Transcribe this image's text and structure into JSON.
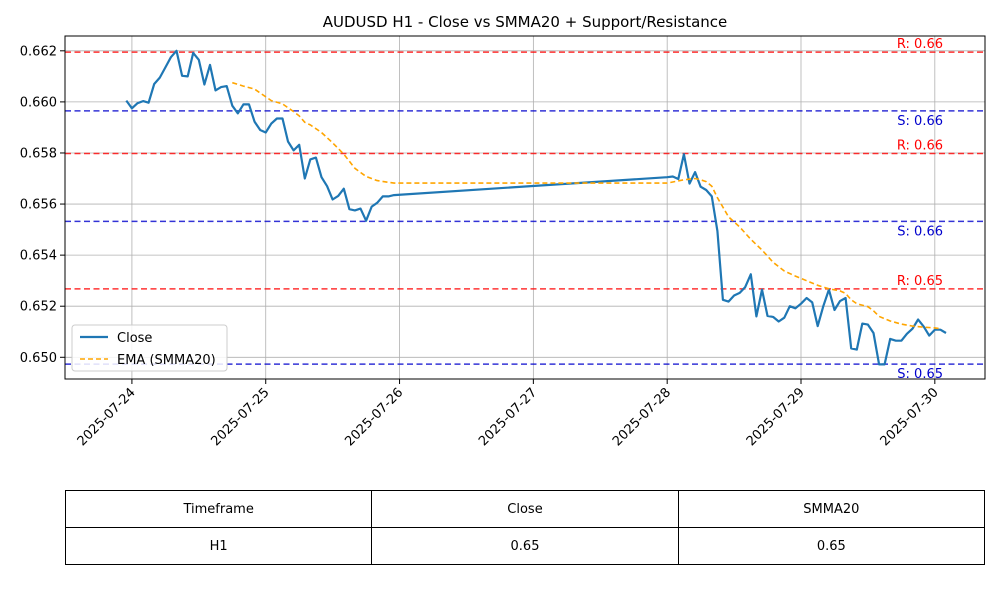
{
  "chart_data": {
    "type": "line",
    "title": "AUDUSD H1 - Close vs SMMA20 + Support/Resistance",
    "xlabel": "",
    "ylabel": "",
    "x_ticks": [
      "2025-07-24",
      "2025-07-25",
      "2025-07-26",
      "2025-07-27",
      "2025-07-28",
      "2025-07-29",
      "2025-07-30"
    ],
    "y_ticks": [
      "0.650",
      "0.652",
      "0.654",
      "0.656",
      "0.658",
      "0.660",
      "0.662"
    ],
    "xlim": [
      "2025-07-23 12:00",
      "2025-07-30 09:00"
    ],
    "ylim": [
      0.64915,
      0.66258
    ],
    "grid": true,
    "legend": {
      "position": "lower-left",
      "entries": [
        {
          "label": "Close",
          "color": "#1f77b4",
          "style": "solid"
        },
        {
          "label": "EMA (SMMA20)",
          "color": "#ffa500",
          "style": "dashed"
        }
      ]
    },
    "series": [
      {
        "name": "Close",
        "color": "#1f77b4",
        "points": [
          [
            "2025-07-23 23:00",
            0.66005
          ],
          [
            "2025-07-24 00:00",
            0.65975
          ],
          [
            "2025-07-24 01:00",
            0.65995
          ],
          [
            "2025-07-24 02:00",
            0.66003
          ],
          [
            "2025-07-24 03:00",
            0.65997
          ],
          [
            "2025-07-24 04:00",
            0.6607
          ],
          [
            "2025-07-24 05:00",
            0.66095
          ],
          [
            "2025-07-24 06:00",
            0.66135
          ],
          [
            "2025-07-24 07:00",
            0.66175
          ],
          [
            "2025-07-24 08:00",
            0.662
          ],
          [
            "2025-07-24 09:00",
            0.66102
          ],
          [
            "2025-07-24 10:00",
            0.661
          ],
          [
            "2025-07-24 11:00",
            0.66192
          ],
          [
            "2025-07-24 12:00",
            0.66165
          ],
          [
            "2025-07-24 13:00",
            0.66068
          ],
          [
            "2025-07-24 14:00",
            0.66145
          ],
          [
            "2025-07-24 15:00",
            0.66045
          ],
          [
            "2025-07-24 16:00",
            0.66058
          ],
          [
            "2025-07-24 17:00",
            0.66062
          ],
          [
            "2025-07-24 18:00",
            0.65985
          ],
          [
            "2025-07-24 19:00",
            0.65955
          ],
          [
            "2025-07-24 20:00",
            0.6599
          ],
          [
            "2025-07-24 21:00",
            0.6599
          ],
          [
            "2025-07-24 22:00",
            0.65922
          ],
          [
            "2025-07-24 23:00",
            0.6589
          ],
          [
            "2025-07-25 00:00",
            0.6588
          ],
          [
            "2025-07-25 01:00",
            0.65915
          ],
          [
            "2025-07-25 02:00",
            0.65935
          ],
          [
            "2025-07-25 03:00",
            0.65935
          ],
          [
            "2025-07-25 04:00",
            0.65845
          ],
          [
            "2025-07-25 05:00",
            0.6581
          ],
          [
            "2025-07-25 06:00",
            0.65832
          ],
          [
            "2025-07-25 07:00",
            0.657
          ],
          [
            "2025-07-25 08:00",
            0.65775
          ],
          [
            "2025-07-25 09:00",
            0.65782
          ],
          [
            "2025-07-25 10:00",
            0.65705
          ],
          [
            "2025-07-25 11:00",
            0.6567
          ],
          [
            "2025-07-25 12:00",
            0.65618
          ],
          [
            "2025-07-25 13:00",
            0.65632
          ],
          [
            "2025-07-25 14:00",
            0.6566
          ],
          [
            "2025-07-25 15:00",
            0.6558
          ],
          [
            "2025-07-25 16:00",
            0.65575
          ],
          [
            "2025-07-25 17:00",
            0.65582
          ],
          [
            "2025-07-25 18:00",
            0.65535
          ],
          [
            "2025-07-25 19:00",
            0.6559
          ],
          [
            "2025-07-25 20:00",
            0.65605
          ],
          [
            "2025-07-25 21:00",
            0.6563
          ],
          [
            "2025-07-25 22:00",
            0.6563
          ],
          [
            "2025-07-25 23:00",
            0.65635
          ],
          [
            "2025-07-28 00:00",
            0.65705
          ],
          [
            "2025-07-28 01:00",
            0.65708
          ],
          [
            "2025-07-28 02:00",
            0.65698
          ],
          [
            "2025-07-28 03:00",
            0.65795
          ],
          [
            "2025-07-28 04:00",
            0.6568
          ],
          [
            "2025-07-28 05:00",
            0.65725
          ],
          [
            "2025-07-28 06:00",
            0.65668
          ],
          [
            "2025-07-28 07:00",
            0.65655
          ],
          [
            "2025-07-28 08:00",
            0.6563
          ],
          [
            "2025-07-28 09:00",
            0.65495
          ],
          [
            "2025-07-28 10:00",
            0.65225
          ],
          [
            "2025-07-28 11:00",
            0.65218
          ],
          [
            "2025-07-28 12:00",
            0.65242
          ],
          [
            "2025-07-28 13:00",
            0.65252
          ],
          [
            "2025-07-28 14:00",
            0.65275
          ],
          [
            "2025-07-28 15:00",
            0.65325
          ],
          [
            "2025-07-28 16:00",
            0.6516
          ],
          [
            "2025-07-28 17:00",
            0.65265
          ],
          [
            "2025-07-28 18:00",
            0.65162
          ],
          [
            "2025-07-28 19:00",
            0.65158
          ],
          [
            "2025-07-28 20:00",
            0.6514
          ],
          [
            "2025-07-28 21:00",
            0.65155
          ],
          [
            "2025-07-28 22:00",
            0.652
          ],
          [
            "2025-07-28 23:00",
            0.65192
          ],
          [
            "2025-07-29 00:00",
            0.6521
          ],
          [
            "2025-07-29 01:00",
            0.65232
          ],
          [
            "2025-07-29 02:00",
            0.65215
          ],
          [
            "2025-07-29 03:00",
            0.65122
          ],
          [
            "2025-07-29 04:00",
            0.652
          ],
          [
            "2025-07-29 05:00",
            0.65265
          ],
          [
            "2025-07-29 06:00",
            0.65185
          ],
          [
            "2025-07-29 07:00",
            0.6522
          ],
          [
            "2025-07-29 08:00",
            0.65232
          ],
          [
            "2025-07-29 09:00",
            0.65035
          ],
          [
            "2025-07-29 10:00",
            0.6503
          ],
          [
            "2025-07-29 11:00",
            0.65132
          ],
          [
            "2025-07-29 12:00",
            0.65128
          ],
          [
            "2025-07-29 13:00",
            0.65095
          ],
          [
            "2025-07-29 14:00",
            0.64972
          ],
          [
            "2025-07-29 15:00",
            0.64972
          ],
          [
            "2025-07-29 16:00",
            0.65072
          ],
          [
            "2025-07-29 17:00",
            0.65065
          ],
          [
            "2025-07-29 18:00",
            0.65065
          ],
          [
            "2025-07-29 19:00",
            0.65092
          ],
          [
            "2025-07-29 20:00",
            0.65112
          ],
          [
            "2025-07-29 21:00",
            0.65148
          ],
          [
            "2025-07-29 22:00",
            0.6512
          ],
          [
            "2025-07-29 23:00",
            0.65085
          ],
          [
            "2025-07-30 00:00",
            0.65108
          ],
          [
            "2025-07-30 01:00",
            0.65108
          ],
          [
            "2025-07-30 02:00",
            0.65095
          ]
        ]
      },
      {
        "name": "EMA (SMMA20)",
        "color": "#ffa500",
        "points": [
          [
            "2025-07-24 18:00",
            0.66075
          ],
          [
            "2025-07-24 20:00",
            0.66062
          ],
          [
            "2025-07-24 22:00",
            0.6605
          ],
          [
            "2025-07-24 23:00",
            0.66035
          ],
          [
            "2025-07-25 01:00",
            0.66005
          ],
          [
            "2025-07-25 03:00",
            0.65992
          ],
          [
            "2025-07-25 05:00",
            0.65962
          ],
          [
            "2025-07-25 06:00",
            0.65945
          ],
          [
            "2025-07-25 07:00",
            0.6592
          ],
          [
            "2025-07-25 08:00",
            0.6591
          ],
          [
            "2025-07-25 10:00",
            0.6588
          ],
          [
            "2025-07-25 12:00",
            0.6584
          ],
          [
            "2025-07-25 14:00",
            0.65795
          ],
          [
            "2025-07-25 16:00",
            0.6574
          ],
          [
            "2025-07-25 18:00",
            0.65708
          ],
          [
            "2025-07-25 20:00",
            0.65692
          ],
          [
            "2025-07-25 22:00",
            0.65685
          ],
          [
            "2025-07-25 23:00",
            0.65682
          ],
          [
            "2025-07-28 00:00",
            0.65682
          ],
          [
            "2025-07-28 03:00",
            0.65695
          ],
          [
            "2025-07-28 05:00",
            0.657
          ],
          [
            "2025-07-28 06:00",
            0.65695
          ],
          [
            "2025-07-28 07:00",
            0.65688
          ],
          [
            "2025-07-28 08:00",
            0.6567
          ],
          [
            "2025-07-28 09:00",
            0.65625
          ],
          [
            "2025-07-28 10:00",
            0.65588
          ],
          [
            "2025-07-28 11:00",
            0.6555
          ],
          [
            "2025-07-28 13:00",
            0.6551
          ],
          [
            "2025-07-28 15:00",
            0.65462
          ],
          [
            "2025-07-28 17:00",
            0.6542
          ],
          [
            "2025-07-28 19:00",
            0.65372
          ],
          [
            "2025-07-28 21:00",
            0.65338
          ],
          [
            "2025-07-28 23:00",
            0.65318
          ],
          [
            "2025-07-29 01:00",
            0.653
          ],
          [
            "2025-07-29 03:00",
            0.65282
          ],
          [
            "2025-07-29 05:00",
            0.65268
          ],
          [
            "2025-07-29 07:00",
            0.6526
          ],
          [
            "2025-07-29 08:00",
            0.6525
          ],
          [
            "2025-07-29 09:00",
            0.65225
          ],
          [
            "2025-07-29 10:00",
            0.6521
          ],
          [
            "2025-07-29 12:00",
            0.65198
          ],
          [
            "2025-07-29 13:00",
            0.65182
          ],
          [
            "2025-07-29 14:00",
            0.6516
          ],
          [
            "2025-07-29 16:00",
            0.65142
          ],
          [
            "2025-07-29 18:00",
            0.6513
          ],
          [
            "2025-07-29 20:00",
            0.65122
          ],
          [
            "2025-07-29 22:00",
            0.65118
          ],
          [
            "2025-07-30 00:00",
            0.65115
          ],
          [
            "2025-07-30 01:00",
            0.65112
          ]
        ]
      }
    ],
    "levels": [
      {
        "kind": "resistance",
        "value": 0.66195,
        "label": "R: 0.66",
        "color": "#ff0000"
      },
      {
        "kind": "support",
        "value": 0.65965,
        "label": "S: 0.66",
        "color": "#0000cc"
      },
      {
        "kind": "resistance",
        "value": 0.65798,
        "label": "R: 0.66",
        "color": "#ff0000"
      },
      {
        "kind": "support",
        "value": 0.65532,
        "label": "S: 0.66",
        "color": "#0000cc"
      },
      {
        "kind": "resistance",
        "value": 0.65268,
        "label": "R: 0.65",
        "color": "#ff0000"
      },
      {
        "kind": "support",
        "value": 0.64973,
        "label": "S: 0.65",
        "color": "#0000cc"
      }
    ]
  },
  "table": {
    "headers": [
      "Timeframe",
      "Close",
      "SMMA20"
    ],
    "row": [
      "H1",
      "0.65",
      "0.65"
    ]
  }
}
